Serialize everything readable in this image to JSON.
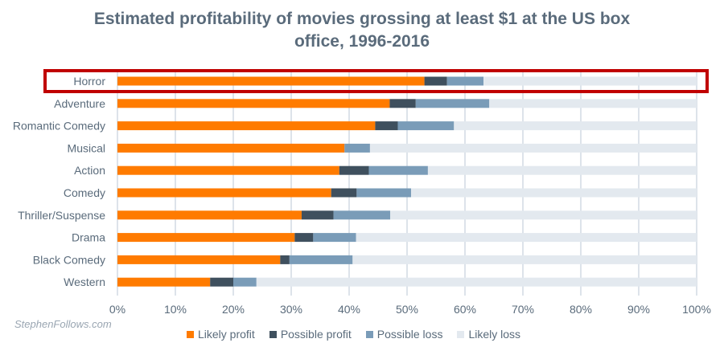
{
  "chart_data": {
    "type": "bar",
    "orientation": "horizontal-stacked",
    "title_lines": [
      "Estimated profitability of movies grossing at least $1 at the US box",
      "office, 1996-2016"
    ],
    "categories": [
      "Horror",
      "Adventure",
      "Romantic Comedy",
      "Musical",
      "Action",
      "Comedy",
      "Thriller/Suspense",
      "Drama",
      "Black Comedy",
      "Western"
    ],
    "series": [
      {
        "name": "Likely profit",
        "color": "#ff7b00",
        "values": [
          53.0,
          47.0,
          44.5,
          39.2,
          38.3,
          36.9,
          31.8,
          30.6,
          28.1,
          16.0
        ]
      },
      {
        "name": "Possible profit",
        "color": "#3f505e",
        "values": [
          3.9,
          4.5,
          3.9,
          0.0,
          5.1,
          4.4,
          5.5,
          3.2,
          1.6,
          4.0
        ]
      },
      {
        "name": "Possible loss",
        "color": "#7a9cb8",
        "values": [
          6.3,
          12.7,
          9.7,
          4.4,
          10.2,
          9.4,
          9.8,
          7.4,
          10.9,
          4.0
        ]
      },
      {
        "name": "Likely loss",
        "color": "#e3e9ef",
        "values": [
          36.8,
          35.8,
          41.9,
          56.4,
          46.4,
          49.3,
          52.9,
          58.8,
          59.4,
          76.0
        ]
      }
    ],
    "xlim": [
      0,
      100
    ],
    "x_ticks": [
      "0%",
      "10%",
      "20%",
      "30%",
      "40%",
      "50%",
      "60%",
      "70%",
      "80%",
      "90%",
      "100%"
    ],
    "grid": true,
    "legend_position": "bottom",
    "highlighted_category": "Horror",
    "highlight_color": "#c00000",
    "credit": "StephenFollows.com"
  }
}
